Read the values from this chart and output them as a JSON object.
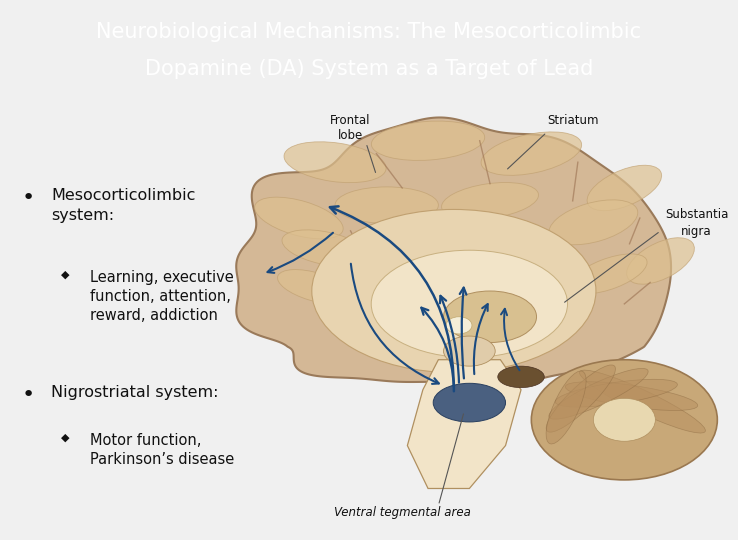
{
  "title_line1": "Neurobiological Mechanisms: The Mesocorticolimbic",
  "title_line2": "Dopamine (DA) System as a Target of Lead",
  "title_bg_color": "#1f4e8c",
  "title_text_color": "#ffffff",
  "accent_yellow": "#e8c020",
  "accent_blue": "#1f3a6e",
  "body_bg_color": "#f0f0f0",
  "bullet1_main": "Mesocorticolimbic\nsystem:",
  "bullet1_sub": "Learning, executive\nfunction, attention,\nreward, addiction",
  "bullet2_main": "Nigrostriatal system:",
  "bullet2_sub": "Motor function,\nParkinson’s disease",
  "text_color": "#111111",
  "title_fontsize": 15,
  "body_fontsize": 11.5,
  "sub_fontsize": 10.5,
  "brain_base": "#d4b896",
  "brain_mid": "#c8a87a",
  "brain_inner": "#e8d4b0",
  "brain_inner2": "#f2e4c8",
  "cerebellum_color": "#c4a070",
  "arrow_color": "#1a4a80",
  "label_color": "#111111"
}
